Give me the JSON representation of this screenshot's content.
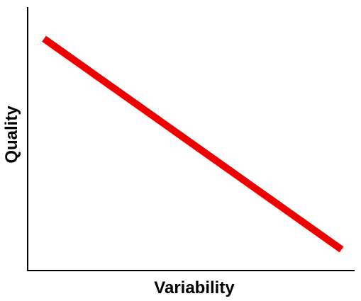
{
  "chart_data": {
    "type": "line",
    "title": "",
    "xlabel": "Variability",
    "ylabel": "Quality",
    "xlim": [
      0,
      100
    ],
    "ylim": [
      0,
      100
    ],
    "grid": false,
    "series": [
      {
        "color": "#ee0000",
        "x": [
          5,
          96
        ],
        "y": [
          88,
          8
        ]
      }
    ],
    "axis_color": "#000000"
  }
}
